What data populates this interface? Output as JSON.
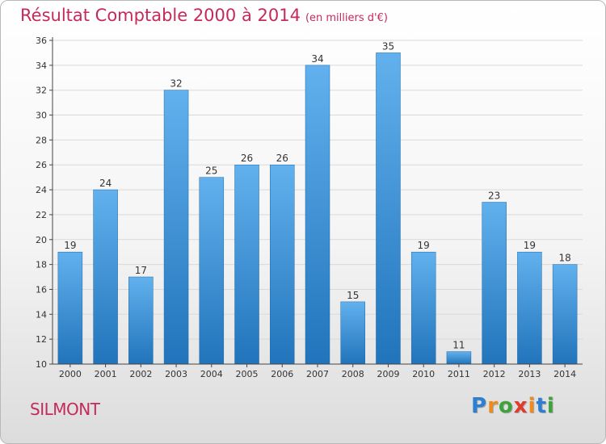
{
  "title": "Résultat Comptable 2000 à 2014",
  "subtitle": "(en milliers d'€)",
  "commune": "SILMONT",
  "logo": {
    "letters": [
      "P",
      "r",
      "o",
      "x",
      "i",
      "t",
      "i"
    ],
    "colors": [
      "#2f7fd0",
      "#f08a1e",
      "#3ea33a",
      "#e23b2d",
      "#f08a1e",
      "#2f7fd0",
      "#3ea33a"
    ]
  },
  "colors": {
    "title": "#c42a5a",
    "bar_top": "#62b1ee",
    "bar_bottom": "#2174bb",
    "axis": "#444444",
    "grid": "#d9d9d9"
  },
  "chart_data": {
    "type": "bar",
    "title": "Résultat Comptable 2000 à 2014",
    "subtitle": "(en milliers d'€)",
    "categories": [
      "2000",
      "2001",
      "2002",
      "2003",
      "2004",
      "2005",
      "2006",
      "2007",
      "2008",
      "2009",
      "2010",
      "2011",
      "2012",
      "2013",
      "2014"
    ],
    "values": [
      19,
      24,
      17,
      32,
      25,
      26,
      26,
      34,
      15,
      35,
      19,
      11,
      23,
      19,
      18
    ],
    "ylim": [
      10,
      36
    ],
    "yticks": [
      10,
      12,
      14,
      16,
      18,
      20,
      22,
      24,
      26,
      28,
      30,
      32,
      34,
      36
    ],
    "grid": true,
    "data_labels": true
  }
}
